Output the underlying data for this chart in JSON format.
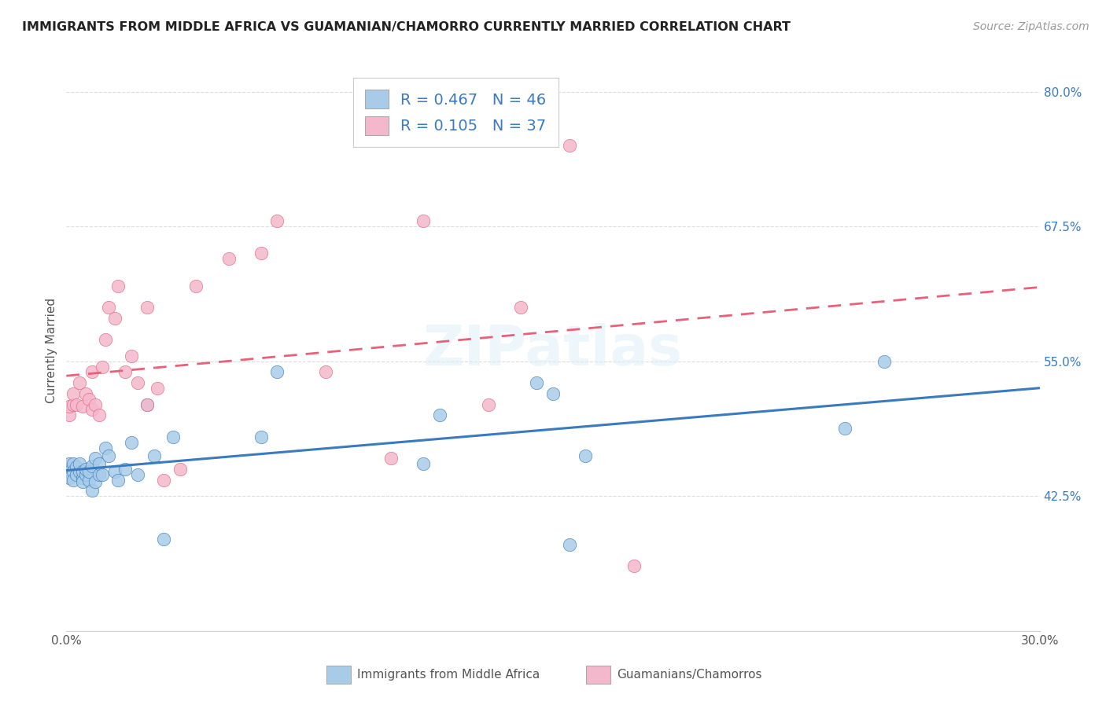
{
  "title": "IMMIGRANTS FROM MIDDLE AFRICA VS GUAMANIAN/CHAMORRO CURRENTLY MARRIED CORRELATION CHART",
  "source": "Source: ZipAtlas.com",
  "ylabel": "Currently Married",
  "legend_label1": "Immigrants from Middle Africa",
  "legend_label2": "Guamanians/Chamorros",
  "R1": 0.467,
  "N1": 46,
  "R2": 0.105,
  "N2": 37,
  "color1": "#a8cce8",
  "color2": "#f4b8cc",
  "line_color1": "#3a7abf",
  "line_color2": "#e8607a",
  "xlim": [
    0.0,
    0.3
  ],
  "ylim": [
    0.3,
    0.82
  ],
  "xticks": [
    0.0,
    0.05,
    0.1,
    0.15,
    0.2,
    0.25,
    0.3
  ],
  "xtick_labels": [
    "0.0%",
    "",
    "",
    "",
    "",
    "",
    "30.0%"
  ],
  "yticks": [
    0.425,
    0.55,
    0.675,
    0.8
  ],
  "ytick_labels": [
    "42.5%",
    "55.0%",
    "67.5%",
    "80.0%"
  ],
  "blue_x": [
    0.001,
    0.001,
    0.001,
    0.001,
    0.002,
    0.002,
    0.002,
    0.003,
    0.003,
    0.004,
    0.004,
    0.005,
    0.005,
    0.005,
    0.006,
    0.006,
    0.007,
    0.007,
    0.008,
    0.008,
    0.009,
    0.009,
    0.01,
    0.01,
    0.011,
    0.012,
    0.013,
    0.015,
    0.016,
    0.018,
    0.02,
    0.022,
    0.025,
    0.027,
    0.06,
    0.065,
    0.11,
    0.115,
    0.145,
    0.15,
    0.155,
    0.16,
    0.24,
    0.252,
    0.03,
    0.033
  ],
  "blue_y": [
    0.45,
    0.455,
    0.448,
    0.442,
    0.455,
    0.448,
    0.44,
    0.452,
    0.445,
    0.448,
    0.455,
    0.442,
    0.448,
    0.438,
    0.445,
    0.45,
    0.44,
    0.448,
    0.453,
    0.43,
    0.438,
    0.46,
    0.445,
    0.455,
    0.445,
    0.47,
    0.462,
    0.448,
    0.44,
    0.45,
    0.475,
    0.445,
    0.51,
    0.462,
    0.48,
    0.54,
    0.455,
    0.5,
    0.53,
    0.52,
    0.38,
    0.462,
    0.488,
    0.55,
    0.385,
    0.48
  ],
  "pink_x": [
    0.001,
    0.001,
    0.002,
    0.002,
    0.003,
    0.004,
    0.005,
    0.006,
    0.007,
    0.008,
    0.008,
    0.009,
    0.01,
    0.011,
    0.012,
    0.013,
    0.015,
    0.016,
    0.018,
    0.02,
    0.022,
    0.025,
    0.025,
    0.028,
    0.03,
    0.035,
    0.04,
    0.05,
    0.06,
    0.065,
    0.08,
    0.1,
    0.11,
    0.13,
    0.14,
    0.155,
    0.175
  ],
  "pink_y": [
    0.5,
    0.508,
    0.51,
    0.52,
    0.51,
    0.53,
    0.508,
    0.52,
    0.515,
    0.54,
    0.505,
    0.51,
    0.5,
    0.545,
    0.57,
    0.6,
    0.59,
    0.62,
    0.54,
    0.555,
    0.53,
    0.6,
    0.51,
    0.525,
    0.44,
    0.45,
    0.62,
    0.645,
    0.65,
    0.68,
    0.54,
    0.46,
    0.68,
    0.51,
    0.6,
    0.75,
    0.36
  ],
  "background_color": "#ffffff",
  "grid_color": "#dddddd",
  "watermark": "ZIPatlas"
}
